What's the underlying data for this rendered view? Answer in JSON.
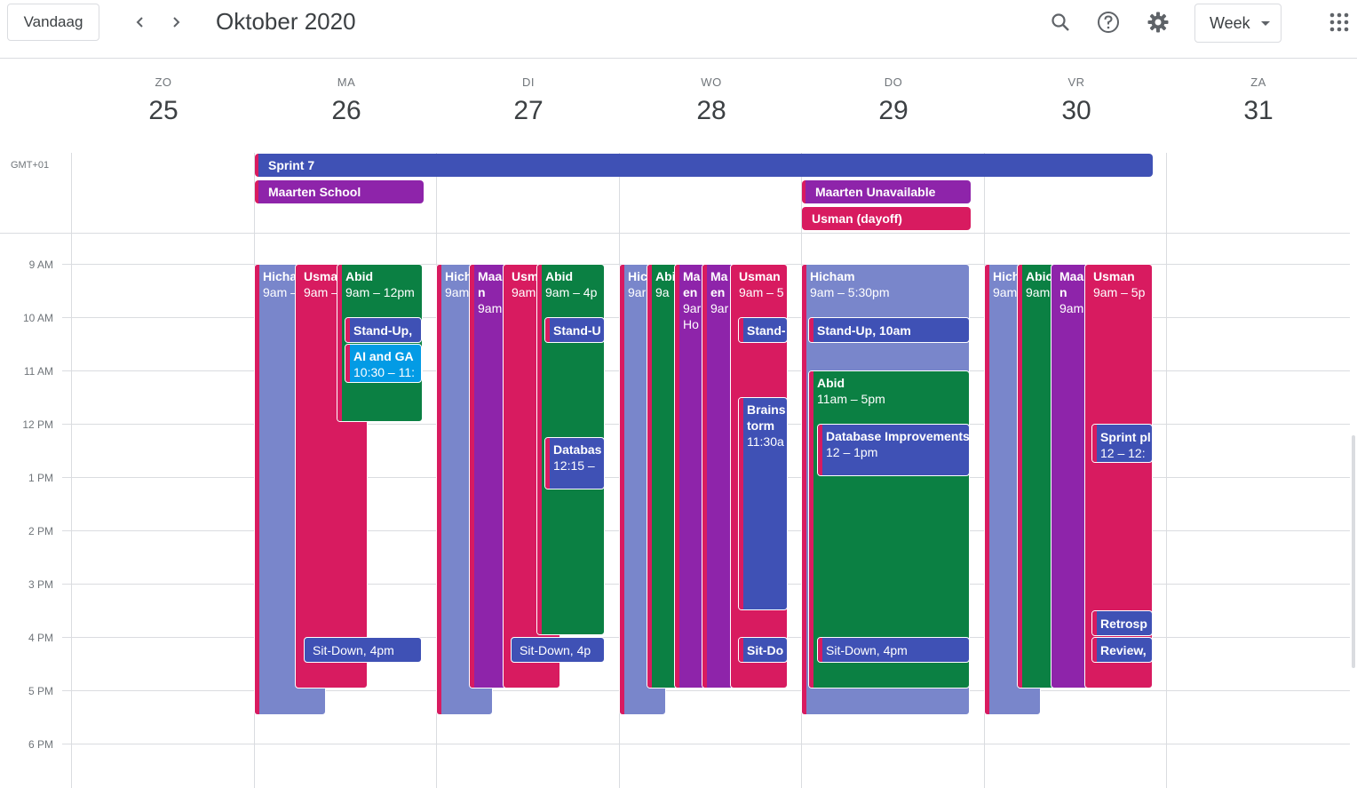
{
  "toolbar": {
    "today_label": "Vandaag",
    "title": "Oktober 2020",
    "view_label": "Week",
    "icons": [
      "chevron-left-icon",
      "chevron-right-icon",
      "search-icon",
      "help-icon",
      "gear-icon",
      "apps-grid-icon"
    ]
  },
  "timezone": "GMT+01",
  "days": [
    {
      "name": "ZO",
      "num": "25"
    },
    {
      "name": "MA",
      "num": "26"
    },
    {
      "name": "DI",
      "num": "27"
    },
    {
      "name": "WO",
      "num": "28"
    },
    {
      "name": "DO",
      "num": "29"
    },
    {
      "name": "VR",
      "num": "30"
    },
    {
      "name": "ZA",
      "num": "31"
    }
  ],
  "hours": [
    "9 AM",
    "10 AM",
    "11 AM",
    "12 PM",
    "1 PM",
    "2 PM",
    "3 PM",
    "4 PM",
    "5 PM",
    "6 PM"
  ],
  "allday_events": {
    "sprint": "Sprint 7",
    "maarten_school": "Maarten School",
    "maarten_unavailable": "Maarten Unavailable",
    "usman_dayoff": "Usman (dayoff)"
  },
  "colors": {
    "lavender": "#7986cb",
    "raspberry": "#d81b60",
    "grape": "#8e24aa",
    "basil": "#0b8043",
    "blueberry": "#3f51b5",
    "peacock": "#039be5"
  },
  "events": {
    "mon": {
      "hicham": {
        "title": "Hicha",
        "time": "9am –"
      },
      "usman": {
        "title": "Usma",
        "time": "9am –"
      },
      "abid": {
        "title": "Abid",
        "time": "9am – 12pm"
      },
      "standup": {
        "title": "Stand-Up,"
      },
      "ai_ga": {
        "title": "AI and GA",
        "time": "10:30 – 11:"
      },
      "sitdown": {
        "title": "Sit-Down, 4pm"
      }
    },
    "tue": {
      "hicham": {
        "title": "Hich",
        "time": "9am"
      },
      "maarten": {
        "title": "Maa n",
        "time": "9am"
      },
      "usman": {
        "title": "Usm",
        "time": "9am"
      },
      "abid": {
        "title": "Abid",
        "time": "9am – 4p"
      },
      "standup": {
        "title": "Stand-U"
      },
      "database": {
        "title": "Databas",
        "time": "12:15 –"
      },
      "sitdown": {
        "title": "Sit-Down, 4p"
      }
    },
    "wed": {
      "hicham": {
        "title": "Hic m",
        "time": "9ar"
      },
      "abid": {
        "title": "Abi",
        "time": "9a"
      },
      "maarten1": {
        "title": "Ma en",
        "time": "9ar Ho"
      },
      "maarten2": {
        "title": "Ma en",
        "time": "9ar"
      },
      "usman": {
        "title": "Usman",
        "time": "9am – 5"
      },
      "standup": {
        "title": "Stand-"
      },
      "brainstorm": {
        "title": "Brains torm",
        "time": "11:30a"
      },
      "sitdown": {
        "title": "Sit-Do"
      }
    },
    "thu": {
      "hicham": {
        "title": "Hicham",
        "time": "9am – 5:30pm"
      },
      "standup": {
        "title": "Stand-Up, 10am"
      },
      "abid": {
        "title": "Abid",
        "time": "11am – 5pm"
      },
      "database": {
        "title": "Database Improvements",
        "time": "12 – 1pm"
      },
      "sitdown": {
        "title": "Sit-Down, 4pm"
      }
    },
    "fri": {
      "hicham": {
        "title": "Hich",
        "time": "9am"
      },
      "abid": {
        "title": "Abic",
        "time": "9am"
      },
      "maarten": {
        "title": "Maa n",
        "time": "9am"
      },
      "usman": {
        "title": "Usman",
        "time": "9am – 5p"
      },
      "sprint_planning": {
        "title": "Sprint pl",
        "time": "12 – 12:"
      },
      "retro": {
        "title": "Retrosp"
      },
      "review": {
        "title": "Review,"
      }
    }
  }
}
